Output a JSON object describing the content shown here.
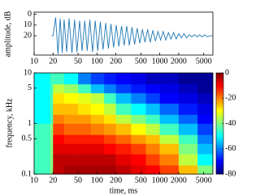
{
  "chart_data": [
    {
      "type": "line",
      "ylabel": "amplitude, dB",
      "log_x": true,
      "color": "#1f77b4",
      "xlim": [
        10,
        7000
      ],
      "xticks": [
        10,
        20,
        50,
        100,
        200,
        500,
        1000,
        2000,
        5000
      ],
      "ylim": [
        38,
        -2
      ],
      "yticks": [
        0,
        10,
        20
      ],
      "x": [
        19,
        20,
        22,
        24,
        26,
        28,
        30,
        33,
        36,
        40,
        44,
        48,
        53,
        58,
        64,
        70,
        77,
        85,
        94,
        103,
        113,
        125,
        138,
        152,
        167,
        184,
        203,
        223,
        246,
        271,
        298,
        328,
        361,
        397,
        437,
        481,
        529,
        582,
        640,
        704,
        775,
        852,
        937,
        1031,
        1134,
        1247,
        1372,
        1509,
        1660,
        1826,
        2009,
        2210,
        2431,
        2674,
        2941,
        3235,
        3559,
        3915,
        4306,
        4737,
        5211,
        5732,
        6300,
        6900
      ],
      "values": [
        20,
        20,
        3,
        37,
        4,
        36,
        5,
        35,
        4,
        36,
        5,
        35,
        6,
        34,
        6,
        34,
        5,
        35,
        6,
        34,
        7,
        33,
        8,
        32,
        9,
        31,
        10,
        30,
        11,
        29,
        11,
        29,
        12,
        28,
        13,
        27,
        14,
        26,
        14,
        26,
        15,
        25,
        16,
        24,
        16,
        24,
        17,
        23,
        17,
        23,
        18,
        22,
        18,
        22,
        19,
        21,
        19,
        21,
        19,
        21,
        19,
        21,
        20,
        20
      ]
    },
    {
      "type": "heatmap",
      "xlabel": "time, ms",
      "ylabel": "frequency, kHz",
      "log_x": true,
      "log_y": true,
      "colormap": "jet",
      "xlim": [
        10,
        7000
      ],
      "xticks": [
        10,
        20,
        50,
        100,
        200,
        500,
        1000,
        2000,
        5000
      ],
      "ylim": [
        0.1,
        10
      ],
      "yticks": [
        0.1,
        0.5,
        1,
        5,
        10
      ],
      "zlim": [
        -80,
        0
      ],
      "zticks": [
        0,
        -20,
        -40,
        -60,
        -80
      ],
      "x_edges": [
        10,
        18,
        20,
        30,
        50,
        80,
        130,
        200,
        350,
        600,
        1000,
        2000,
        4000,
        7000
      ],
      "y_edges": [
        0.1,
        0.15,
        0.25,
        0.4,
        0.6,
        1,
        1.5,
        2.5,
        4,
        6,
        10
      ],
      "z": [
        [
          -45,
          -40,
          -5,
          -3,
          -3,
          -3,
          -3,
          -5,
          -8,
          -10,
          -15,
          -25,
          -40
        ],
        [
          -45,
          -40,
          -5,
          -5,
          -5,
          -5,
          -5,
          -8,
          -10,
          -15,
          -20,
          -35,
          -50
        ],
        [
          -45,
          -40,
          -8,
          -8,
          -8,
          -8,
          -10,
          -12,
          -15,
          -20,
          -25,
          -40,
          -55
        ],
        [
          -45,
          -40,
          -10,
          -12,
          -12,
          -12,
          -15,
          -18,
          -22,
          -25,
          -35,
          -45,
          -60
        ],
        [
          -45,
          -40,
          -15,
          -18,
          -18,
          -20,
          -22,
          -25,
          -30,
          -35,
          -45,
          -55,
          -65
        ],
        [
          -50,
          -45,
          -20,
          -22,
          -22,
          -25,
          -28,
          -35,
          -40,
          -45,
          -55,
          -62,
          -70
        ],
        [
          -50,
          -45,
          -25,
          -25,
          -28,
          -30,
          -35,
          -45,
          -50,
          -55,
          -62,
          -68,
          -72
        ],
        [
          -50,
          -45,
          -28,
          -30,
          -32,
          -35,
          -45,
          -55,
          -60,
          -65,
          -70,
          -72,
          -75
        ],
        [
          -50,
          -45,
          -35,
          -38,
          -45,
          -55,
          -60,
          -65,
          -68,
          -70,
          -72,
          -75,
          -78
        ],
        [
          -50,
          -45,
          -45,
          -50,
          -60,
          -65,
          -68,
          -70,
          -72,
          -75,
          -75,
          -78,
          -78
        ]
      ]
    }
  ]
}
